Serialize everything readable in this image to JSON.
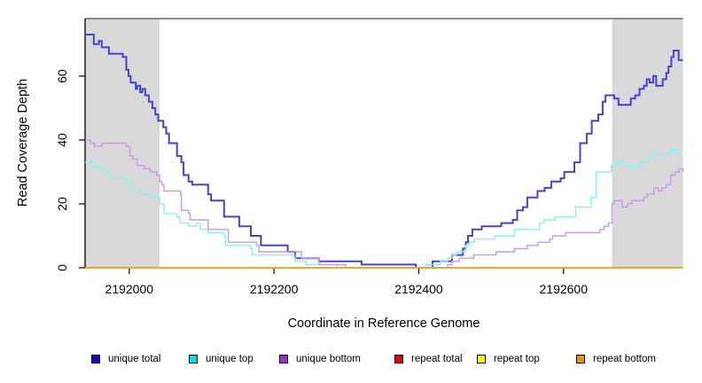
{
  "chart_data": {
    "type": "line",
    "step": true,
    "xlabel": "Coordinate in Reference Genome",
    "ylabel": "Read Coverage Depth",
    "x_range": [
      2191939,
      2192765
    ],
    "y_range": [
      0,
      78
    ],
    "x_ticks": [
      2192000,
      2192200,
      2192400,
      2192600
    ],
    "y_ticks": [
      0,
      20,
      40,
      60
    ],
    "grid": false,
    "legend_position": "bottom",
    "shade_color": "#d9d9d9",
    "axis_color": "#000000",
    "top_border_color": "#7d7d7d",
    "shaded_regions": [
      {
        "x0": 2191939,
        "x1": 2192042
      },
      {
        "x0": 2192667,
        "x1": 2192765
      }
    ],
    "series": [
      {
        "name": "unique total",
        "legend_color": "#0d0dc8",
        "line_color": "#4343dc",
        "line_width": 2,
        "points": [
          [
            2191939,
            73
          ],
          [
            2191951,
            70
          ],
          [
            2191958,
            71
          ],
          [
            2191962,
            69
          ],
          [
            2191972,
            67
          ],
          [
            2191991,
            66
          ],
          [
            2191996,
            62
          ],
          [
            2191999,
            60
          ],
          [
            2192002,
            58
          ],
          [
            2192009,
            56
          ],
          [
            2192011,
            57
          ],
          [
            2192015,
            55
          ],
          [
            2192018,
            56
          ],
          [
            2192022,
            54
          ],
          [
            2192027,
            52
          ],
          [
            2192032,
            50
          ],
          [
            2192036,
            48
          ],
          [
            2192040,
            46
          ],
          [
            2192047,
            44
          ],
          [
            2192051,
            42
          ],
          [
            2192055,
            39
          ],
          [
            2192066,
            35
          ],
          [
            2192072,
            33
          ],
          [
            2192075,
            29
          ],
          [
            2192082,
            27
          ],
          [
            2192087,
            26
          ],
          [
            2192109,
            23
          ],
          [
            2192113,
            21
          ],
          [
            2192131,
            16
          ],
          [
            2192152,
            13
          ],
          [
            2192168,
            10
          ],
          [
            2192182,
            7
          ],
          [
            2192219,
            5
          ],
          [
            2192229,
            3
          ],
          [
            2192262,
            2
          ],
          [
            2192321,
            1
          ],
          [
            2192396,
            0
          ],
          [
            2192419,
            2
          ],
          [
            2192446,
            4
          ],
          [
            2192461,
            6
          ],
          [
            2192465,
            8
          ],
          [
            2192468,
            10
          ],
          [
            2192474,
            12
          ],
          [
            2192487,
            13
          ],
          [
            2192514,
            14
          ],
          [
            2192530,
            15
          ],
          [
            2192536,
            18
          ],
          [
            2192544,
            19
          ],
          [
            2192550,
            22
          ],
          [
            2192564,
            24
          ],
          [
            2192574,
            25
          ],
          [
            2192583,
            27
          ],
          [
            2192596,
            28
          ],
          [
            2192601,
            30
          ],
          [
            2192615,
            33
          ],
          [
            2192623,
            39
          ],
          [
            2192632,
            42
          ],
          [
            2192639,
            46
          ],
          [
            2192648,
            48
          ],
          [
            2192654,
            52
          ],
          [
            2192658,
            54
          ],
          [
            2192670,
            53
          ],
          [
            2192676,
            51
          ],
          [
            2192693,
            53
          ],
          [
            2192699,
            54
          ],
          [
            2192705,
            56
          ],
          [
            2192711,
            57
          ],
          [
            2192715,
            59
          ],
          [
            2192719,
            58
          ],
          [
            2192724,
            60
          ],
          [
            2192728,
            57
          ],
          [
            2192737,
            59
          ],
          [
            2192742,
            61
          ],
          [
            2192745,
            63
          ],
          [
            2192749,
            66
          ],
          [
            2192752,
            68
          ],
          [
            2192759,
            65
          ],
          [
            2192765,
            65
          ]
        ]
      },
      {
        "name": "unique top",
        "legend_color": "#00e0e6",
        "line_color": "#8df0ee",
        "line_width": 1.4,
        "points": [
          [
            2191939,
            33
          ],
          [
            2191947,
            32
          ],
          [
            2191956,
            31
          ],
          [
            2191964,
            30
          ],
          [
            2191971,
            29
          ],
          [
            2191977,
            28
          ],
          [
            2191993,
            27
          ],
          [
            2192001,
            25
          ],
          [
            2192009,
            24
          ],
          [
            2192017,
            23
          ],
          [
            2192029,
            22
          ],
          [
            2192042,
            20
          ],
          [
            2192048,
            17
          ],
          [
            2192066,
            16
          ],
          [
            2192070,
            14
          ],
          [
            2192082,
            13
          ],
          [
            2192093,
            14
          ],
          [
            2192098,
            12
          ],
          [
            2192109,
            11
          ],
          [
            2192131,
            10
          ],
          [
            2192133,
            7
          ],
          [
            2192168,
            6
          ],
          [
            2192170,
            4
          ],
          [
            2192228,
            3
          ],
          [
            2192230,
            2
          ],
          [
            2192244,
            1
          ],
          [
            2192287,
            0
          ],
          [
            2192410,
            1
          ],
          [
            2192430,
            2
          ],
          [
            2192440,
            3
          ],
          [
            2192446,
            4
          ],
          [
            2192452,
            5
          ],
          [
            2192465,
            7
          ],
          [
            2192470,
            8
          ],
          [
            2192477,
            9
          ],
          [
            2192505,
            10
          ],
          [
            2192532,
            12
          ],
          [
            2192567,
            14
          ],
          [
            2192573,
            15
          ],
          [
            2192588,
            16
          ],
          [
            2192617,
            19
          ],
          [
            2192638,
            22
          ],
          [
            2192645,
            30
          ],
          [
            2192666,
            32
          ],
          [
            2192672,
            33
          ],
          [
            2192682,
            32
          ],
          [
            2192693,
            31
          ],
          [
            2192699,
            32
          ],
          [
            2192706,
            33
          ],
          [
            2192719,
            35
          ],
          [
            2192724,
            36
          ],
          [
            2192731,
            35
          ],
          [
            2192742,
            36
          ],
          [
            2192748,
            37
          ],
          [
            2192755,
            36
          ],
          [
            2192765,
            36
          ]
        ]
      },
      {
        "name": "unique bottom",
        "legend_color": "#9b2fd6",
        "line_color": "#c79ae8",
        "line_width": 1.4,
        "points": [
          [
            2191939,
            40
          ],
          [
            2191946,
            39
          ],
          [
            2191952,
            38
          ],
          [
            2191962,
            39
          ],
          [
            2191996,
            38
          ],
          [
            2192001,
            35
          ],
          [
            2192005,
            34
          ],
          [
            2192011,
            32
          ],
          [
            2192021,
            31
          ],
          [
            2192029,
            30
          ],
          [
            2192038,
            29
          ],
          [
            2192042,
            27
          ],
          [
            2192045,
            26
          ],
          [
            2192048,
            24
          ],
          [
            2192071,
            23
          ],
          [
            2192072,
            18
          ],
          [
            2192082,
            17
          ],
          [
            2192084,
            15
          ],
          [
            2192109,
            12
          ],
          [
            2192137,
            8
          ],
          [
            2192176,
            7
          ],
          [
            2192179,
            5
          ],
          [
            2192238,
            3
          ],
          [
            2192262,
            1
          ],
          [
            2192299,
            0
          ],
          [
            2192440,
            1
          ],
          [
            2192446,
            2
          ],
          [
            2192456,
            3
          ],
          [
            2192476,
            4
          ],
          [
            2192507,
            5
          ],
          [
            2192532,
            6
          ],
          [
            2192550,
            7
          ],
          [
            2192565,
            8
          ],
          [
            2192581,
            9
          ],
          [
            2192585,
            10
          ],
          [
            2192603,
            11
          ],
          [
            2192650,
            12
          ],
          [
            2192656,
            13
          ],
          [
            2192662,
            14
          ],
          [
            2192667,
            20
          ],
          [
            2192670,
            21
          ],
          [
            2192681,
            19
          ],
          [
            2192688,
            20
          ],
          [
            2192694,
            21
          ],
          [
            2192711,
            22
          ],
          [
            2192715,
            23
          ],
          [
            2192725,
            25
          ],
          [
            2192731,
            24
          ],
          [
            2192736,
            25
          ],
          [
            2192742,
            26
          ],
          [
            2192748,
            29
          ],
          [
            2192754,
            30
          ],
          [
            2192760,
            31
          ],
          [
            2192765,
            30
          ]
        ]
      },
      {
        "name": "repeat total",
        "legend_color": "#e00000",
        "line_color": "#e06666",
        "line_width": 1.4,
        "points": [
          [
            2191939,
            0
          ],
          [
            2192765,
            0
          ]
        ]
      },
      {
        "name": "repeat top",
        "legend_color": "#f8f800",
        "line_color": "#f8f880",
        "line_width": 1.4,
        "points": [
          [
            2191939,
            0
          ],
          [
            2192765,
            0
          ]
        ]
      },
      {
        "name": "repeat bottom",
        "legend_color": "#f29400",
        "line_color": "#ff9e1a",
        "line_width": 1.8,
        "points": [
          [
            2191939,
            0
          ],
          [
            2192765,
            0
          ]
        ]
      }
    ]
  }
}
